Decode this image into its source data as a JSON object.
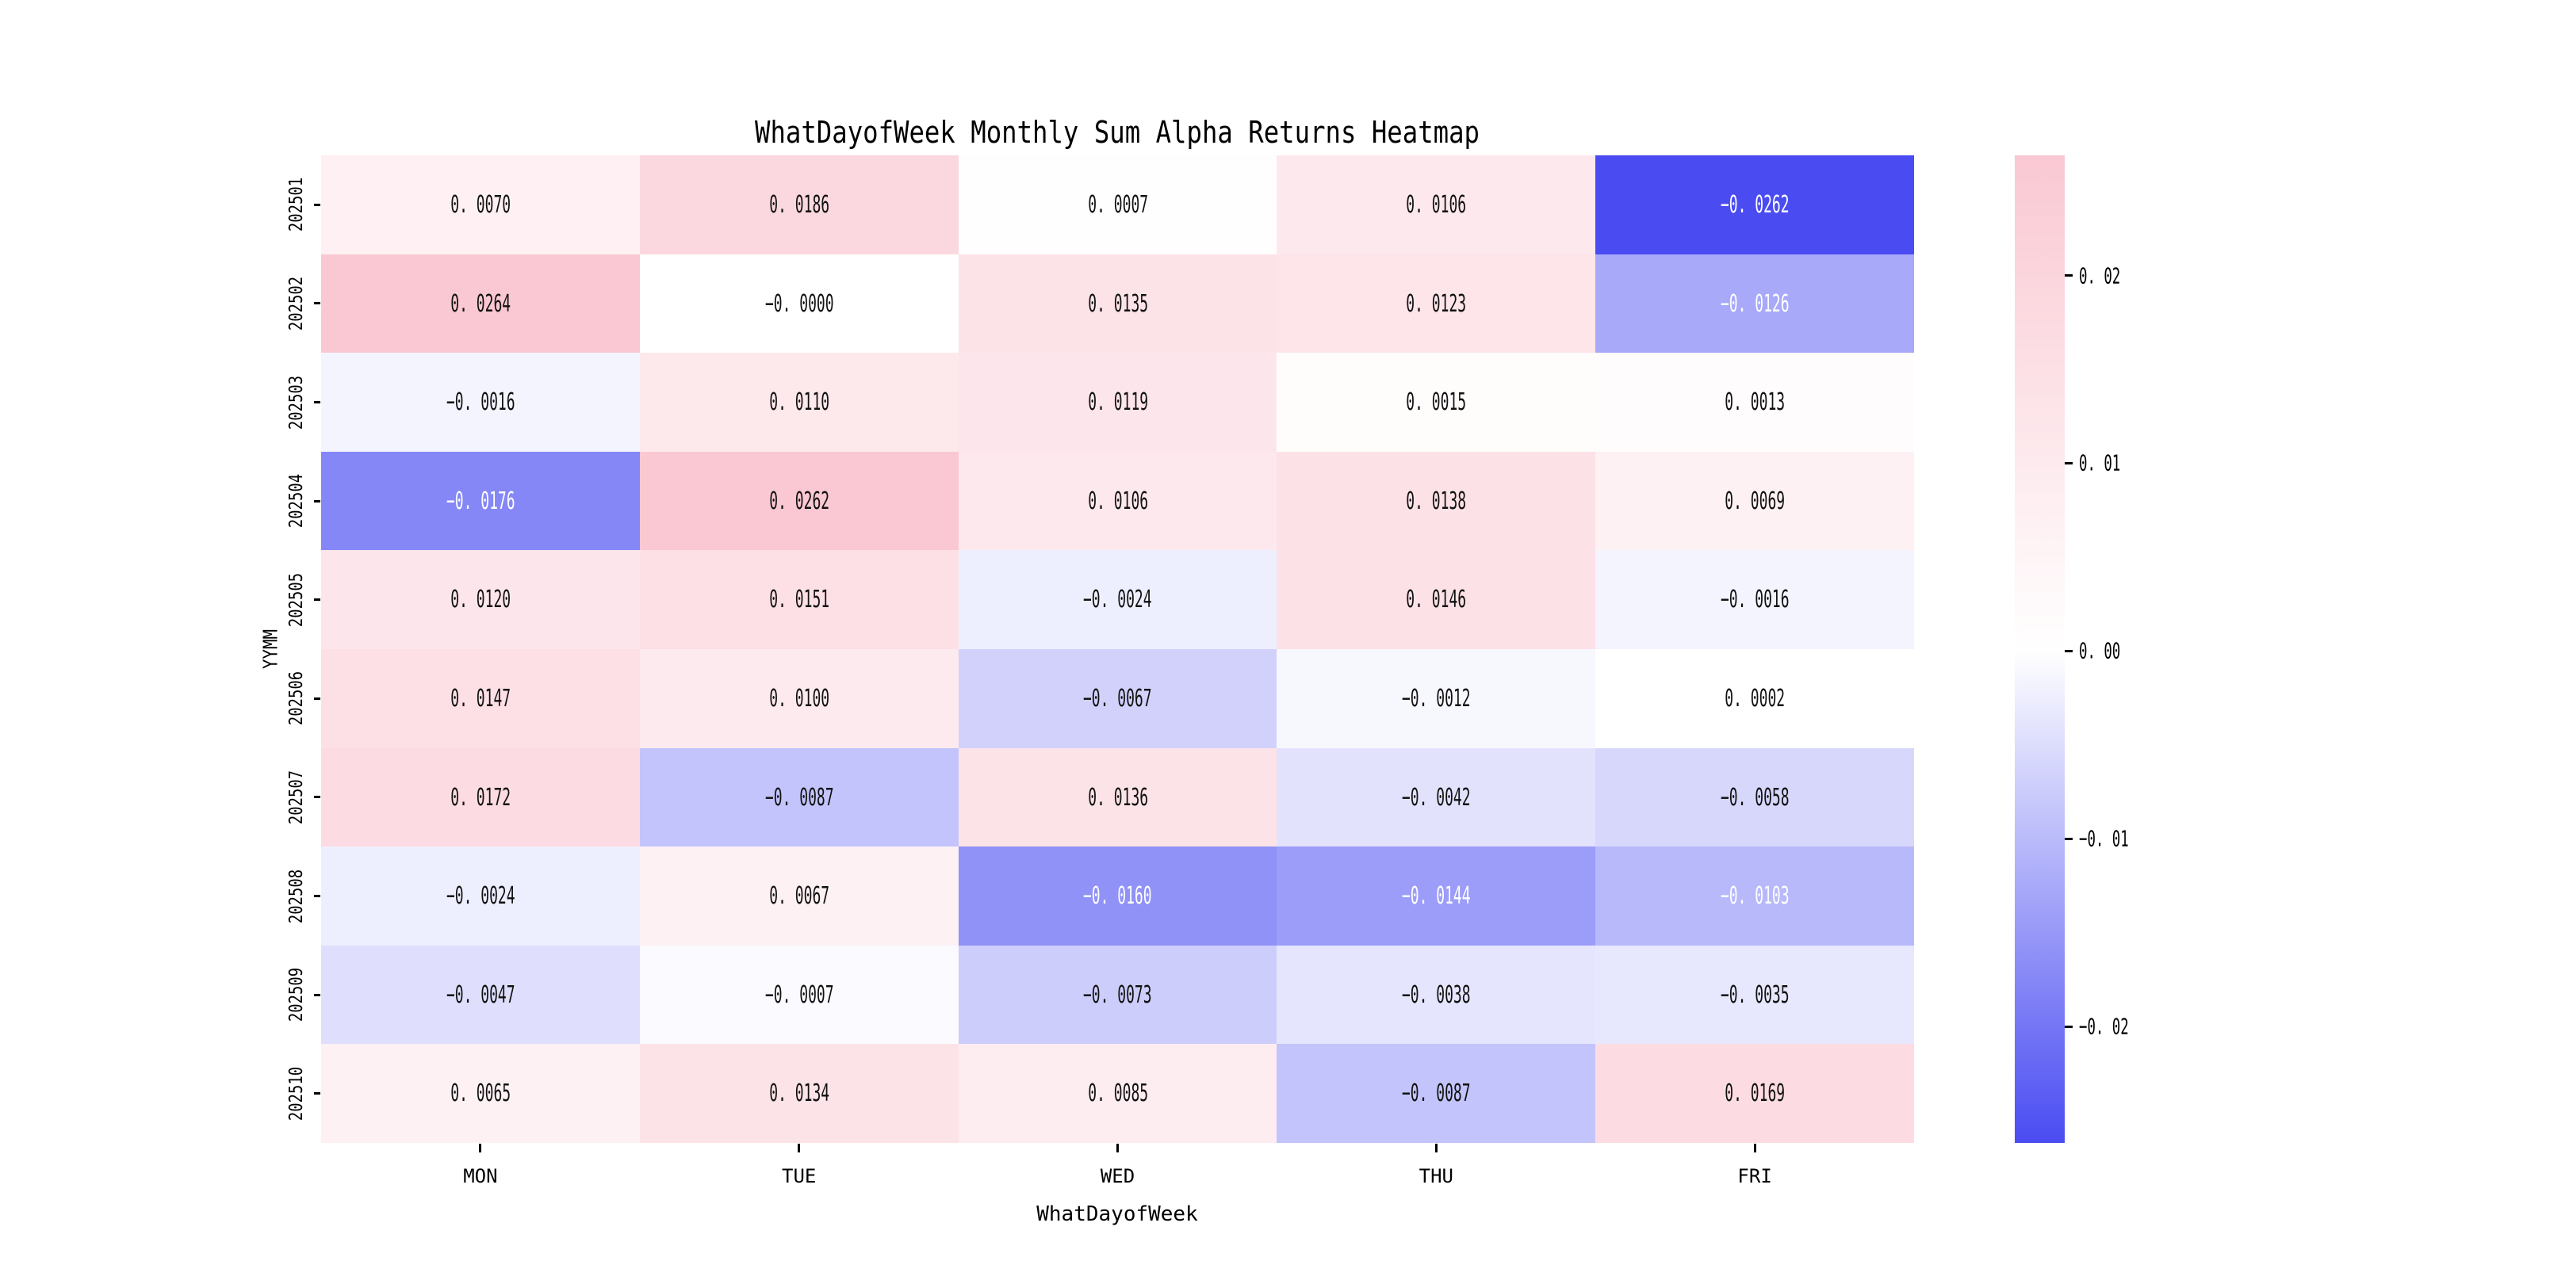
{
  "chart_data": {
    "type": "heatmap",
    "title": "WhatDayofWeek Monthly Sum Alpha Returns Heatmap",
    "xlabel": "WhatDayofWeek",
    "ylabel": "YYMM",
    "columns": [
      "MON",
      "TUE",
      "WED",
      "THU",
      "FRI"
    ],
    "rows": [
      "202501",
      "202502",
      "202503",
      "202504",
      "202505",
      "202506",
      "202507",
      "202508",
      "202509",
      "202510"
    ],
    "values": [
      [
        "0.0070",
        "0.0186",
        "0.0007",
        "0.0106",
        "-0.0262"
      ],
      [
        "0.0264",
        "-0.0000",
        "0.0135",
        "0.0123",
        "-0.0126"
      ],
      [
        "-0.0016",
        "0.0110",
        "0.0119",
        "0.0015",
        "0.0013"
      ],
      [
        "-0.0176",
        "0.0262",
        "0.0106",
        "0.0138",
        "0.0069"
      ],
      [
        "0.0120",
        "0.0151",
        "-0.0024",
        "0.0146",
        "-0.0016"
      ],
      [
        "0.0147",
        "0.0100",
        "-0.0067",
        "-0.0012",
        "0.0002"
      ],
      [
        "0.0172",
        "-0.0087",
        "0.0136",
        "-0.0042",
        "-0.0058"
      ],
      [
        "-0.0024",
        "0.0067",
        "-0.0160",
        "-0.0144",
        "-0.0103"
      ],
      [
        "-0.0047",
        "-0.0007",
        "-0.0073",
        "-0.0038",
        "-0.0035"
      ],
      [
        "0.0065",
        "0.0134",
        "0.0085",
        "-0.0087",
        "0.0169"
      ]
    ],
    "vmin": -0.0262,
    "vmax": 0.0264,
    "colorbar_ticks": [
      "0.02",
      "0.01",
      "0.00",
      "-0.01",
      "-0.02"
    ],
    "legend_position": "right",
    "grid": false,
    "colors": {
      "max_positive": "#fac8d2",
      "zero": "#ffffff",
      "min_negative": "#4a4cf2",
      "annot_dark": "#111111",
      "annot_light": "#ffffff"
    }
  }
}
